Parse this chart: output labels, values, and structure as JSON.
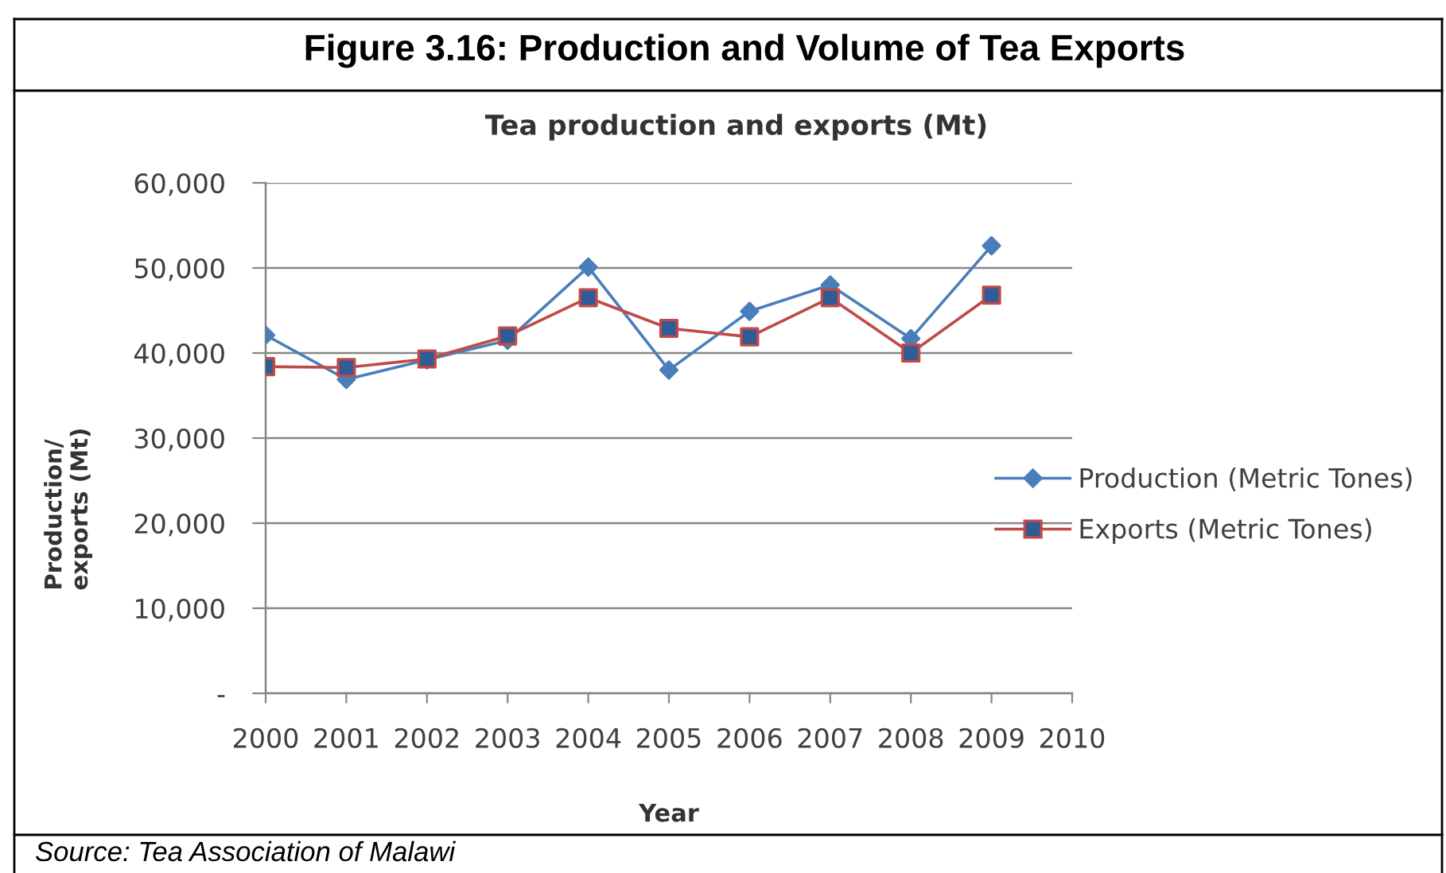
{
  "chart_data": {
    "type": "line",
    "title": "Figure 3.16: Production and Volume of Tea Exports",
    "subtitle": "Tea production and exports (Mt)",
    "xlabel": "Year",
    "ylabel": "Production/\nexports (Mt)",
    "x": [
      2000,
      2001,
      2002,
      2003,
      2004,
      2005,
      2006,
      2007,
      2008,
      2009
    ],
    "xlim": [
      2000,
      2010
    ],
    "xticks": [
      2000,
      2001,
      2002,
      2003,
      2004,
      2005,
      2006,
      2007,
      2008,
      2009,
      2010
    ],
    "ylim": [
      0,
      60000
    ],
    "yticks": [
      {
        "value": 0,
        "label": "-"
      },
      {
        "value": 10000,
        "label": "10,000"
      },
      {
        "value": 20000,
        "label": "20,000"
      },
      {
        "value": 30000,
        "label": "30,000"
      },
      {
        "value": 40000,
        "label": "40,000"
      },
      {
        "value": 50000,
        "label": "50,000"
      },
      {
        "value": 60000,
        "label": "60,000"
      }
    ],
    "grid": "y",
    "legend": "right",
    "line_style": "solid",
    "series": [
      {
        "name": "Production (Metric Tones)",
        "color": "#4a7ebb",
        "marker": "diamond",
        "values": [
          42100,
          36900,
          39200,
          41500,
          50100,
          38000,
          44900,
          48000,
          41700,
          52600
        ]
      },
      {
        "name": "Exports (Metric Tones)",
        "color": "#be4b48",
        "marker": "square",
        "colors": [
          "#2f5b97",
          "#2f5b97",
          "#2f5b97",
          "#2f5b97",
          "#2f5b97",
          "#2f5b97",
          "#2f5b97",
          "#2f5b97",
          "#2f5b97",
          "#2f5b97"
        ],
        "values": [
          38400,
          38300,
          39300,
          42000,
          46500,
          42900,
          41900,
          46500,
          40000,
          46800
        ]
      }
    ],
    "annotations": [
      "Source: Tea Association of Malawi"
    ]
  }
}
